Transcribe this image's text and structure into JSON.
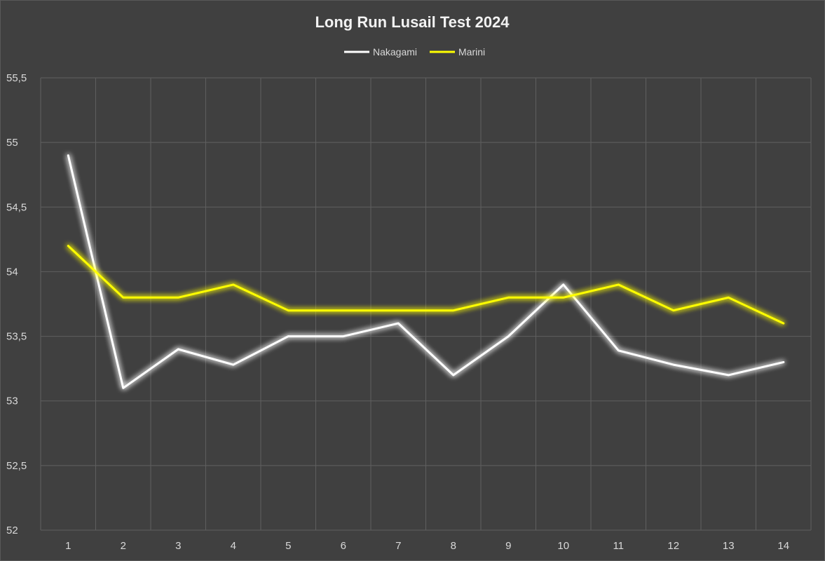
{
  "chart_data": {
    "type": "line",
    "title": "Long Run Lusail Test 2024",
    "xlabel": "",
    "ylabel": "",
    "categories": [
      "1",
      "2",
      "3",
      "4",
      "5",
      "6",
      "7",
      "8",
      "9",
      "10",
      "11",
      "12",
      "13",
      "14"
    ],
    "ylim": [
      52,
      55.5
    ],
    "y_ticks": [
      "52",
      "52,5",
      "53",
      "53,5",
      "54",
      "54,5",
      "55",
      "55,5"
    ],
    "grid": true,
    "legend_position": "top-center",
    "series": [
      {
        "name": "Nakagami",
        "color": "#ffffff",
        "values": [
          54.9,
          53.1,
          53.4,
          53.28,
          53.5,
          53.5,
          53.6,
          53.2,
          53.5,
          53.9,
          53.39,
          53.28,
          53.2,
          53.3
        ]
      },
      {
        "name": "Marini",
        "color": "#ffff00",
        "values": [
          54.2,
          53.8,
          53.8,
          53.9,
          53.7,
          53.7,
          53.7,
          53.7,
          53.8,
          53.8,
          53.9,
          53.7,
          53.8,
          53.6
        ]
      }
    ]
  }
}
